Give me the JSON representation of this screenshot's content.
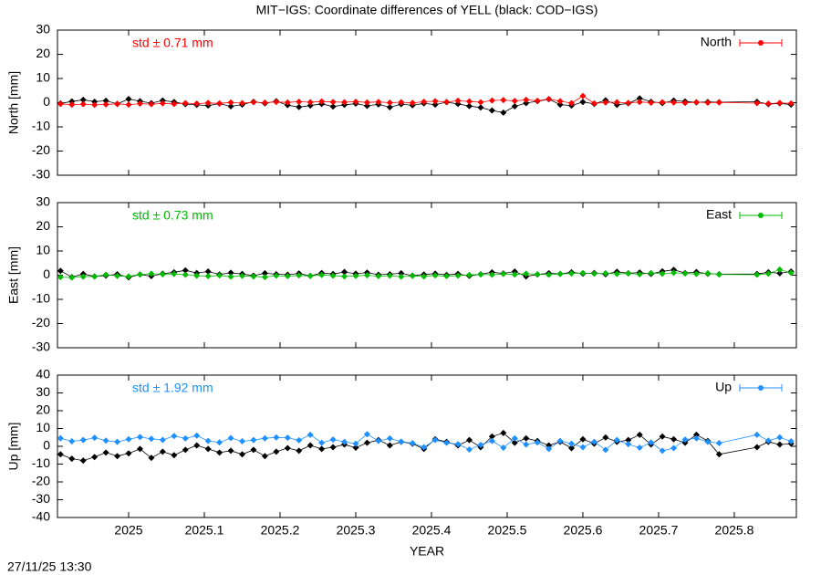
{
  "title": "MIT−IGS: Coordinate differences of YELL (black: COD−IGS)",
  "timestamp": "27/11/25 13:30",
  "chart_data": [
    {
      "type": "line",
      "ylabel": "North [mm]",
      "annotation": "std ± 0.71 mm",
      "xlim": [
        2024.906,
        2025.882
      ],
      "xticks": [
        2025,
        2025.1,
        2025.2,
        2025.3,
        2025.4,
        2025.5,
        2025.6,
        2025.7,
        2025.8
      ],
      "ylim": [
        -30,
        30
      ],
      "yticks": [
        -30,
        -20,
        -10,
        0,
        10,
        20,
        30
      ],
      "x": [
        2024.91,
        2024.925,
        2024.94,
        2024.955,
        2024.97,
        2024.985,
        2025.0,
        2025.015,
        2025.03,
        2025.045,
        2025.06,
        2025.075,
        2025.09,
        2025.105,
        2025.12,
        2025.135,
        2025.15,
        2025.165,
        2025.18,
        2025.195,
        2025.21,
        2025.225,
        2025.24,
        2025.255,
        2025.27,
        2025.285,
        2025.3,
        2025.315,
        2025.33,
        2025.345,
        2025.36,
        2025.375,
        2025.39,
        2025.405,
        2025.42,
        2025.435,
        2025.45,
        2025.465,
        2025.48,
        2025.495,
        2025.51,
        2025.525,
        2025.54,
        2025.555,
        2025.57,
        2025.585,
        2025.6,
        2025.615,
        2025.63,
        2025.645,
        2025.66,
        2025.675,
        2025.69,
        2025.705,
        2025.72,
        2025.735,
        2025.75,
        2025.765,
        2025.78,
        2025.83,
        2025.845,
        2025.86,
        2025.875
      ],
      "series": [
        {
          "color": "#000000",
          "values": [
            -0.3,
            0.5,
            1.2,
            0.4,
            0.8,
            -0.5,
            1.5,
            0.6,
            -0.2,
            0.9,
            0.3,
            -0.6,
            -0.9,
            -1.2,
            -0.4,
            -1.5,
            -0.8,
            0.4,
            -0.3,
            0.6,
            -1.0,
            -1.8,
            -1.2,
            -0.5,
            -1.6,
            -0.9,
            -0.4,
            -1.3,
            -0.7,
            -1.9,
            -0.6,
            -1.1,
            -0.3,
            -0.8,
            0.2,
            -0.5,
            -1.4,
            -2.0,
            -3.2,
            -4.1,
            -1.5,
            -0.2,
            0.6,
            1.4,
            -0.8,
            -1.2,
            0.3,
            -0.5,
            1.0,
            -0.9,
            -0.3,
            1.8,
            0.4,
            -0.2,
            0.9,
            0.5,
            0.1,
            0.3,
            0.2,
            0.4,
            -0.6,
            -0.3,
            -0.8
          ]
        },
        {
          "name": "North",
          "color": "#ff0000",
          "values": [
            -0.5,
            -0.8,
            -0.6,
            -0.9,
            -0.7,
            -0.5,
            -0.8,
            -0.4,
            -0.6,
            -0.3,
            -0.5,
            -0.2,
            -0.4,
            -0.1,
            -0.3,
            0.1,
            -0.2,
            0.2,
            0,
            0.3,
            0.1,
            0.4,
            0.2,
            0.5,
            0.3,
            0.2,
            0.4,
            0.1,
            0.3,
            0,
            0.2,
            -0.1,
            0.4,
            0.6,
            0.3,
            0.8,
            0.5,
            0.2,
            0.9,
            1.1,
            0.7,
            1.2,
            0.8,
            1.5,
            0.6,
            -0.2,
            2.8,
            -0.3,
            0.1,
            0.2,
            -0.1,
            0.3,
            0,
            0.2,
            0.1,
            -0.1,
            0.2,
            0,
            0.1,
            -0.2,
            -0.4,
            -0.1,
            -0.3
          ]
        }
      ]
    },
    {
      "type": "line",
      "ylabel": "East [mm]",
      "annotation": "std ± 0.73 mm",
      "xlim": [
        2024.906,
        2025.882
      ],
      "xticks": [
        2025,
        2025.1,
        2025.2,
        2025.3,
        2025.4,
        2025.5,
        2025.6,
        2025.7,
        2025.8
      ],
      "ylim": [
        -30,
        30
      ],
      "yticks": [
        -30,
        -20,
        -10,
        0,
        10,
        20,
        30
      ],
      "x": [
        2024.91,
        2024.925,
        2024.94,
        2024.955,
        2024.97,
        2024.985,
        2025.0,
        2025.015,
        2025.03,
        2025.045,
        2025.06,
        2025.075,
        2025.09,
        2025.105,
        2025.12,
        2025.135,
        2025.15,
        2025.165,
        2025.18,
        2025.195,
        2025.21,
        2025.225,
        2025.24,
        2025.255,
        2025.27,
        2025.285,
        2025.3,
        2025.315,
        2025.33,
        2025.345,
        2025.36,
        2025.375,
        2025.39,
        2025.405,
        2025.42,
        2025.435,
        2025.45,
        2025.465,
        2025.48,
        2025.495,
        2025.51,
        2025.525,
        2025.54,
        2025.555,
        2025.57,
        2025.585,
        2025.6,
        2025.615,
        2025.63,
        2025.645,
        2025.66,
        2025.675,
        2025.69,
        2025.705,
        2025.72,
        2025.735,
        2025.75,
        2025.765,
        2025.78,
        2025.83,
        2025.845,
        2025.86,
        2025.875
      ],
      "series": [
        {
          "color": "#000000",
          "values": [
            1.8,
            -0.8,
            0.5,
            -0.5,
            -0.2,
            0.4,
            -0.9,
            0.3,
            -0.4,
            0.6,
            1.2,
            2.0,
            0.9,
            1.5,
            0.3,
            1.0,
            0.5,
            -0.2,
            0.8,
            0.4,
            0.2,
            0.7,
            -0.3,
            0.9,
            0.5,
            1.3,
            0.6,
            1.1,
            0.2,
            0.4,
            0.8,
            -0.2,
            0.3,
            0.6,
            0.1,
            0.5,
            -0.3,
            0.4,
            1.2,
            0.7,
            1.5,
            -0.5,
            0.3,
            0.8,
            0.5,
            1.2,
            0.6,
            0.9,
            0.4,
            1.4,
            0.8,
            1.1,
            0.5,
            1.6,
            2.2,
            0.9,
            1.3,
            0.6,
            0.4,
            0.5,
            1.2,
            0.8,
            1.5
          ]
        },
        {
          "name": "East",
          "color": "#00bb00",
          "values": [
            -0.8,
            -1.0,
            -0.6,
            -0.5,
            0.2,
            -0.3,
            -0.5,
            0.3,
            0.6,
            0.4,
            0.5,
            0.2,
            -0.2,
            -0.4,
            -0.1,
            -0.6,
            -0.3,
            -0.5,
            -0.8,
            -0.2,
            -0.4,
            -0.1,
            -0.3,
            0.1,
            -0.2,
            -0.5,
            -0.3,
            0,
            -0.4,
            -0.2,
            -0.6,
            -0.3,
            -0.5,
            -0.1,
            -0.4,
            -0.2,
            0.1,
            0.3,
            0.2,
            0.5,
            0.3,
            0.6,
            0.4,
            0.2,
            0.5,
            0.7,
            0.9,
            0.6,
            0.8,
            0.5,
            0.7,
            0.4,
            0.9,
            0.6,
            1.0,
            0.7,
            0.5,
            0.8,
            0.3,
            0.2,
            0.6,
            2.3,
            1.0
          ]
        }
      ]
    },
    {
      "type": "line",
      "ylabel": "Up [mm]",
      "xlabel": "YEAR",
      "annotation": "std ± 1.92 mm",
      "xlim": [
        2024.906,
        2025.882
      ],
      "xticks": [
        2025,
        2025.1,
        2025.2,
        2025.3,
        2025.4,
        2025.5,
        2025.6,
        2025.7,
        2025.8
      ],
      "ylim": [
        -40,
        40
      ],
      "yticks": [
        -40,
        -30,
        -20,
        -10,
        0,
        10,
        20,
        30,
        40
      ],
      "x": [
        2024.91,
        2024.925,
        2024.94,
        2024.955,
        2024.97,
        2024.985,
        2025.0,
        2025.015,
        2025.03,
        2025.045,
        2025.06,
        2025.075,
        2025.09,
        2025.105,
        2025.12,
        2025.135,
        2025.15,
        2025.165,
        2025.18,
        2025.195,
        2025.21,
        2025.225,
        2025.24,
        2025.255,
        2025.27,
        2025.285,
        2025.3,
        2025.315,
        2025.33,
        2025.345,
        2025.36,
        2025.375,
        2025.39,
        2025.405,
        2025.42,
        2025.435,
        2025.45,
        2025.465,
        2025.48,
        2025.495,
        2025.51,
        2025.525,
        2025.54,
        2025.555,
        2025.57,
        2025.585,
        2025.6,
        2025.615,
        2025.63,
        2025.645,
        2025.66,
        2025.675,
        2025.69,
        2025.705,
        2025.72,
        2025.735,
        2025.75,
        2025.765,
        2025.78,
        2025.83,
        2025.845,
        2025.86,
        2025.875
      ],
      "series": [
        {
          "color": "#000000",
          "values": [
            -4.5,
            -7.0,
            -8.0,
            -6.0,
            -3.5,
            -5.5,
            -4.0,
            -1.5,
            -6.5,
            -3.0,
            -5.0,
            -2.0,
            0.5,
            -1.5,
            -3.5,
            -2.5,
            -4.5,
            -2.0,
            -5.5,
            -3.0,
            -1.0,
            -2.5,
            0.5,
            -1.5,
            -0.5,
            1.0,
            -0.8,
            2.0,
            3.5,
            0.5,
            2.5,
            1.5,
            -1.5,
            4.0,
            2.5,
            0.5,
            3.5,
            -0.5,
            5.5,
            7.5,
            2.0,
            4.5,
            3.0,
            0.5,
            2.5,
            -1.0,
            4.0,
            1.5,
            5.0,
            2.5,
            3.5,
            6.5,
            1.0,
            5.5,
            4.0,
            2.0,
            6.5,
            3.0,
            -4.5,
            -0.5,
            2.5,
            1.0,
            1.5
          ]
        },
        {
          "name": "Up",
          "color": "#1e90ff",
          "values": [
            4.5,
            2.8,
            3.5,
            4.8,
            3.2,
            2.5,
            4.0,
            5.2,
            4.2,
            3.6,
            5.8,
            4.4,
            6.0,
            3.0,
            2.2,
            4.6,
            2.8,
            3.5,
            4.5,
            5.0,
            4.8,
            3.4,
            6.5,
            2.0,
            3.8,
            2.5,
            1.5,
            6.8,
            3.0,
            4.4,
            2.6,
            1.8,
            -0.5,
            3.5,
            2.0,
            1.2,
            -1.8,
            0.8,
            3.0,
            -0.8,
            4.5,
            1.0,
            2.2,
            -1.5,
            3.0,
            1.5,
            -0.5,
            2.5,
            -2.0,
            3.5,
            1.2,
            -0.8,
            2.2,
            -2.5,
            -1.0,
            3.8,
            4.5,
            2.5,
            1.8,
            6.5,
            3.2,
            5.0,
            2.8
          ]
        }
      ]
    }
  ]
}
